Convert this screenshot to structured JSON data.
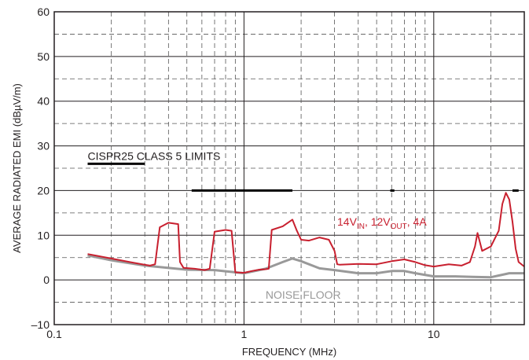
{
  "chart_data": {
    "type": "line",
    "title": "",
    "xlabel": "FREQUENCY (MHz)",
    "ylabel": "AVERAGE RADIATED EMI (dBµV/m)",
    "x_scale": "log",
    "xlim": [
      0.1,
      30
    ],
    "ylim": [
      -10,
      60
    ],
    "x_ticks": [
      {
        "value": 0.1,
        "label": "0.1"
      },
      {
        "value": 1,
        "label": "1"
      },
      {
        "value": 10,
        "label": "10"
      }
    ],
    "y_ticks": [
      {
        "value": -10,
        "label": "–10"
      },
      {
        "value": 0,
        "label": "0"
      },
      {
        "value": 10,
        "label": "10"
      },
      {
        "value": 20,
        "label": "20"
      },
      {
        "value": 30,
        "label": "30"
      },
      {
        "value": 40,
        "label": "40"
      },
      {
        "value": 50,
        "label": "50"
      },
      {
        "value": 60,
        "label": "60"
      }
    ],
    "grid": true,
    "colors": {
      "emi": "#c8202f",
      "noise": "#999999",
      "limits": "#000000",
      "text": "#231f20",
      "grid": "#555555"
    },
    "annotations": {
      "limits_label": "CISPR25 CLASS 5 LIMITS",
      "emi_label": {
        "a": "14V",
        "a_sub": "IN",
        "b": ", 12V",
        "b_sub": "OUT",
        "c": ", 4A"
      },
      "noise_label": "NOISE FLOOR"
    },
    "series": [
      {
        "key": "emi",
        "x": [
          0.15,
          0.2,
          0.25,
          0.3,
          0.32,
          0.34,
          0.36,
          0.4,
          0.45,
          0.46,
          0.48,
          0.55,
          0.62,
          0.66,
          0.7,
          0.8,
          0.86,
          0.9,
          1.0,
          1.1,
          1.2,
          1.3,
          1.35,
          1.4,
          1.6,
          1.8,
          1.9,
          2.0,
          2.2,
          2.5,
          2.8,
          3.0,
          3.1,
          3.2,
          4.0,
          5.0,
          6.0,
          7.0,
          8.0,
          9.0,
          10.0,
          12.0,
          14.0,
          15.5,
          16.5,
          17.0,
          18.0,
          20.0,
          22.0,
          23.0,
          24.0,
          25.0,
          26.0,
          27.0,
          28.0,
          30.0
        ],
        "y": [
          5.8,
          4.8,
          4.0,
          3.4,
          3.2,
          3.5,
          11.8,
          12.8,
          12.5,
          4.0,
          2.7,
          2.5,
          2.2,
          2.5,
          10.8,
          11.2,
          11.0,
          1.7,
          1.6,
          2.0,
          2.3,
          2.4,
          2.5,
          11.2,
          12.0,
          13.5,
          11.0,
          9.0,
          8.8,
          9.5,
          9.0,
          6.5,
          3.5,
          3.4,
          3.6,
          3.5,
          4.2,
          4.6,
          4.0,
          3.3,
          3.0,
          3.5,
          3.2,
          4.0,
          7.5,
          10.5,
          6.5,
          7.5,
          11.0,
          17.0,
          19.5,
          18.0,
          13.0,
          7.0,
          4.0,
          3.0
        ]
      },
      {
        "key": "noise",
        "x": [
          0.15,
          0.2,
          0.3,
          0.5,
          0.7,
          1.0,
          1.3,
          1.6,
          1.8,
          2.0,
          2.5,
          3.0,
          4.0,
          5.0,
          6.0,
          7.0,
          8.0,
          10.0,
          13.0,
          16.0,
          20.0,
          25.0,
          30.0
        ],
        "y": [
          5.5,
          4.4,
          3.2,
          2.3,
          2.2,
          1.5,
          2.5,
          4.0,
          4.8,
          4.2,
          2.6,
          2.2,
          1.5,
          1.5,
          2.0,
          2.0,
          1.5,
          0.8,
          0.8,
          0.7,
          0.6,
          1.5,
          1.5
        ]
      }
    ],
    "limit_segments": [
      {
        "x": [
          0.15,
          0.3
        ],
        "y": 26
      },
      {
        "x": [
          0.53,
          1.8
        ],
        "y": 20
      },
      {
        "x": [
          5.9,
          6.2
        ],
        "y": 20
      },
      {
        "x": [
          26,
          28
        ],
        "y": 20
      }
    ]
  }
}
